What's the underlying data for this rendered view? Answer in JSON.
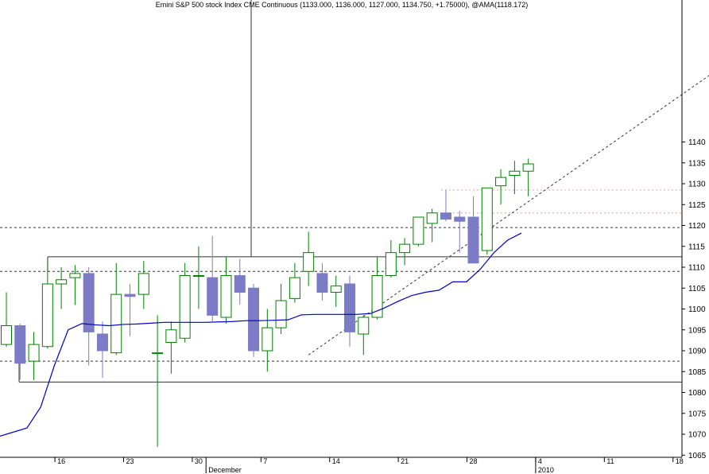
{
  "window_title": "Emini S&P 500 stock Index CME Continuous (1133.000, 1136.000, 1127.000, 1134.750, +1.75000), @AMA(1118.172)",
  "colors": {
    "background": "#ffffff",
    "up_candle": "#008000",
    "down_candle": "#7b7bc6",
    "ama_line": "#0000cc",
    "level_line": "#333333",
    "resistance_line": "#e8a0a0"
  },
  "chart_data": {
    "type": "candlestick",
    "title": "Emini S&P 500 stock Index CME Continuous (1133.000, 1136.000, 1127.000, 1134.750, +1.75000), @AMA(1118.172)",
    "ylim": [
      1060,
      1142
    ],
    "y_ticks": [
      1065,
      1070,
      1075,
      1080,
      1085,
      1090,
      1095,
      1100,
      1105,
      1110,
      1115,
      1120,
      1125,
      1130,
      1135,
      1140
    ],
    "x_ticks": [
      {
        "label": "16",
        "bar": 4
      },
      {
        "label": "23",
        "bar": 9
      },
      {
        "label": "30",
        "bar": 14
      },
      {
        "label": "7",
        "bar": 19
      },
      {
        "label": "14",
        "bar": 24
      },
      {
        "label": "21",
        "bar": 29
      },
      {
        "label": "28",
        "bar": 34
      },
      {
        "label": "4",
        "bar": 39
      },
      {
        "label": "11",
        "bar": 44
      },
      {
        "label": "18",
        "bar": 49
      }
    ],
    "month_labels": [
      {
        "label": "December",
        "bar": 15
      },
      {
        "label": "2010",
        "bar": 39
      }
    ],
    "series": [
      {
        "name": "Emini S&P 500 stock Index CME Continuous",
        "kind": "ohlc",
        "fields": [
          "open",
          "high",
          "low",
          "close"
        ],
        "bars": [
          [
            1091.5,
            1104.0,
            1091.0,
            1096.0
          ],
          [
            1096.0,
            1096.5,
            1083.0,
            1087.0
          ],
          [
            1087.5,
            1094.5,
            1083.0,
            1091.5
          ],
          [
            1091.0,
            1112.0,
            1090.5,
            1106.0
          ],
          [
            1106.0,
            1110.0,
            1100.0,
            1107.0
          ],
          [
            1107.5,
            1110.5,
            1101.0,
            1108.5
          ],
          [
            1108.5,
            1110.0,
            1086.5,
            1094.5
          ],
          [
            1094.0,
            1097.0,
            1083.5,
            1090.0
          ],
          [
            1089.5,
            1111.0,
            1089.0,
            1103.5
          ],
          [
            1103.5,
            1106.0,
            1093.5,
            1103.0
          ],
          [
            1103.5,
            1111.5,
            1100.0,
            1108.5
          ],
          [
            1089.5,
            1098.5,
            1067.0,
            1089.5
          ],
          [
            1092.0,
            1097.0,
            1084.5,
            1095.0
          ],
          [
            1093.0,
            1111.0,
            1092.0,
            1108.0
          ],
          [
            1108.0,
            1115.0,
            1100.0,
            1108.0
          ],
          [
            1107.5,
            1117.5,
            1097.0,
            1098.5
          ],
          [
            1098.0,
            1112.5,
            1096.5,
            1108.0
          ],
          [
            1108.0,
            1112.0,
            1101.0,
            1104.0
          ],
          [
            1105.0,
            1106.0,
            1088.5,
            1090.0
          ],
          [
            1090.0,
            1100.0,
            1085.0,
            1095.5
          ],
          [
            1095.5,
            1106.0,
            1094.0,
            1102.0
          ],
          [
            1102.5,
            1111.0,
            1101.5,
            1107.5
          ],
          [
            1109.0,
            1118.5,
            1105.5,
            1113.5
          ],
          [
            1108.5,
            1111.0,
            1102.0,
            1104.0
          ],
          [
            1104.0,
            1108.0,
            1100.5,
            1105.5
          ],
          [
            1106.0,
            1108.0,
            1091.0,
            1094.5
          ],
          [
            1094.0,
            1098.5,
            1089.0,
            1098.0
          ],
          [
            1098.0,
            1112.5,
            1097.5,
            1108.0
          ],
          [
            1108.0,
            1116.5,
            1107.5,
            1113.5
          ],
          [
            1113.5,
            1117.0,
            1110.5,
            1115.5
          ],
          [
            1115.5,
            1122.0,
            1115.0,
            1122.0
          ],
          [
            1120.5,
            1124.0,
            1116.0,
            1123.0
          ],
          [
            1123.0,
            1128.5,
            1121.0,
            1121.5
          ],
          [
            1122.0,
            1123.5,
            1113.5,
            1121.0
          ],
          [
            1122.0,
            1127.0,
            1111.0,
            1111.0
          ],
          [
            1114.0,
            1129.0,
            1113.0,
            1129.0
          ],
          [
            1129.5,
            1133.5,
            1125.0,
            1131.5
          ],
          [
            1132.0,
            1135.5,
            1127.5,
            1133.0
          ],
          [
            1133.0,
            1136.0,
            1127.0,
            1134.75
          ]
        ]
      },
      {
        "name": "@AMA",
        "kind": "line",
        "values": [
          1069.5,
          1070.5,
          1071.5,
          1076.5,
          1086.5,
          1095.0,
          1096.5,
          1096.2,
          1096.0,
          1096.3,
          1096.4,
          1096.6,
          1096.8,
          1096.8,
          1096.8,
          1096.8,
          1096.9,
          1097.0,
          1097.2,
          1097.2,
          1097.3,
          1097.4,
          1098.6,
          1098.7,
          1098.7,
          1098.7,
          1098.7,
          1098.9,
          1100.2,
          1101.8,
          1103.2,
          1104.0,
          1104.5,
          1106.5,
          1106.5,
          1109.5,
          1113.5,
          1116.5,
          1118.172
        ]
      }
    ],
    "horizontal_lines": [
      {
        "value": 1112.5,
        "style": "solid"
      },
      {
        "value": 1082.5,
        "style": "solid"
      },
      {
        "value": 1109.0,
        "style": "dashed"
      },
      {
        "value": 1087.5,
        "style": "dashed"
      },
      {
        "value": 1119.5,
        "style": "dashed"
      },
      {
        "value": 1128.5,
        "style": "dotted"
      },
      {
        "value": 1123.0,
        "style": "dotted"
      }
    ],
    "trend_line": {
      "from": [
        22,
        1089.0
      ],
      "to": [
        56,
        1167.0
      ],
      "style": "dashed"
    },
    "grid": false,
    "legend": "none"
  }
}
